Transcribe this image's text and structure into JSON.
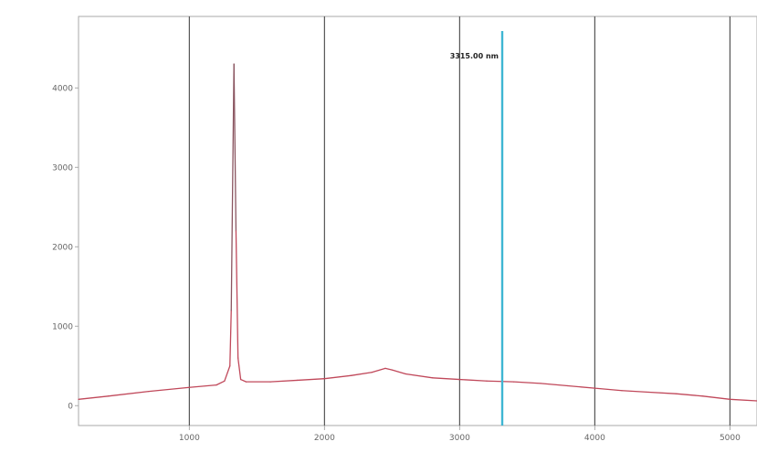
{
  "chart_data": {
    "type": "line",
    "title": "",
    "xlabel": "",
    "ylabel": "",
    "xlim": [
      180,
      5200
    ],
    "ylim": [
      -250,
      4900
    ],
    "x_ticks": [
      1000,
      2000,
      3000,
      4000,
      5000
    ],
    "x_tick_labels": [
      "1000",
      "2000",
      "3000",
      "4000",
      "5000"
    ],
    "y_ticks": [
      0,
      1000,
      2000,
      3000,
      4000
    ],
    "y_tick_labels": [
      "0",
      "1000",
      "2000",
      "3000",
      "4000"
    ],
    "grid": {
      "x": true,
      "y": false
    },
    "colors": {
      "series": "#c0485a",
      "peak": "#8a5560",
      "marker": "#3fb6d3",
      "grid": "#555555",
      "axis": "#aaaaaa"
    },
    "series": [
      {
        "x": [
          180,
          400,
          700,
          1000,
          1200,
          1260,
          1300,
          1310,
          1330,
          1345,
          1360,
          1380,
          1420,
          1600,
          1800,
          2000,
          2200,
          2350,
          2450,
          2500,
          2600,
          2800,
          3000,
          3200,
          3400,
          3600,
          3800,
          4000,
          4200,
          4400,
          4600,
          4800,
          5000,
          5200
        ],
        "y": [
          80,
          120,
          180,
          230,
          260,
          310,
          500,
          1200,
          4300,
          2200,
          600,
          330,
          300,
          300,
          320,
          340,
          380,
          420,
          470,
          450,
          400,
          350,
          330,
          310,
          300,
          280,
          250,
          220,
          190,
          170,
          150,
          120,
          80,
          60
        ]
      }
    ],
    "marker": {
      "x": 3315,
      "label": "3315.00 nm"
    }
  }
}
